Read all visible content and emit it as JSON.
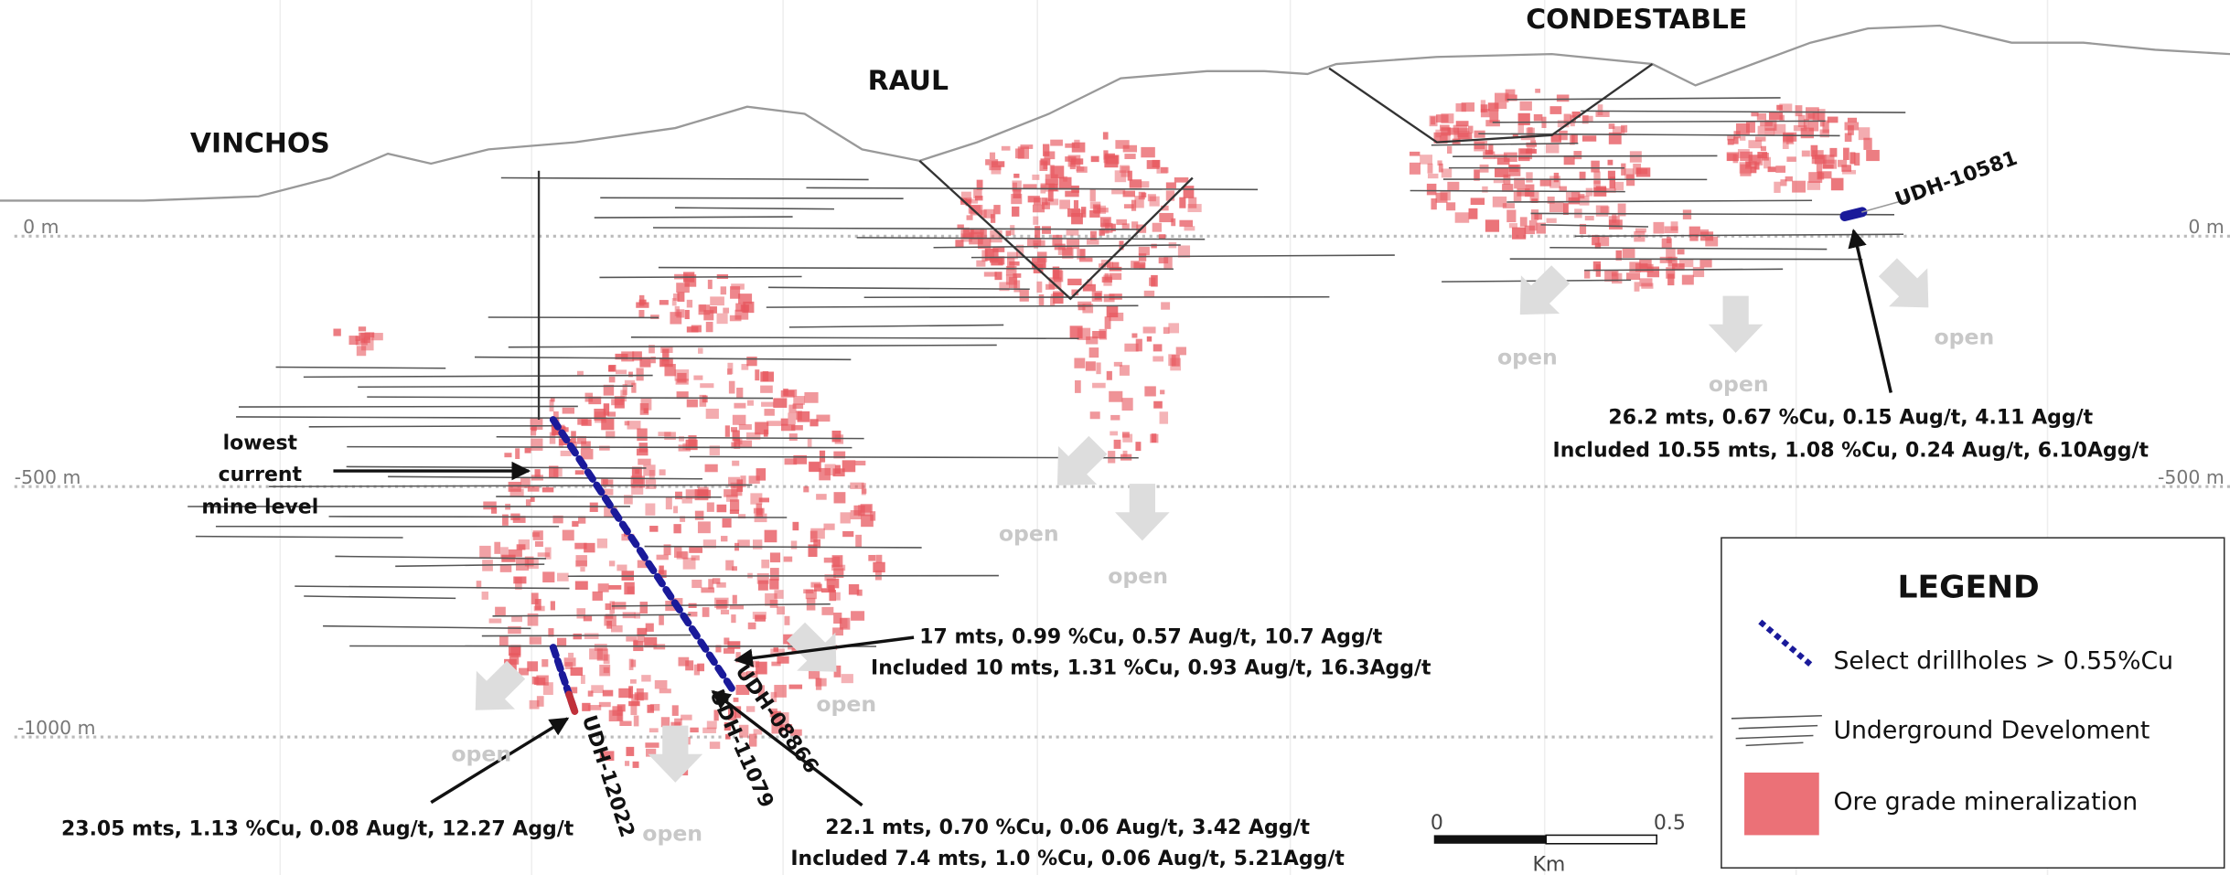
{
  "zones": [
    "VINCHOS",
    "RAUL",
    "CONDESTABLE"
  ],
  "depth_levels": {
    "left": [
      "0 m",
      "-500 m",
      "-1000 m"
    ],
    "right": [
      "0 m",
      "-500 m"
    ]
  },
  "mine_level_note": [
    "lowest",
    "current",
    "mine level"
  ],
  "open_labels": [
    "open",
    "open",
    "open",
    "open",
    "open",
    "open",
    "open",
    "open"
  ],
  "drillholes": [
    "UDH-10581",
    "UDH-08866",
    "UDH-11079",
    "UDH-12022"
  ],
  "intercepts": [
    {
      "lines": [
        "26.2 mts, 0.67 %Cu, 0.15 Aug/t, 4.11 Agg/t",
        "Included 10.55 mts, 1.08 %Cu, 0.24 Aug/t, 6.10Agg/t"
      ]
    },
    {
      "lines": [
        "17 mts, 0.99 %Cu, 0.57 Aug/t, 10.7 Agg/t",
        "Included 10 mts, 1.31 %Cu, 0.93 Aug/t, 16.3Agg/t"
      ]
    },
    {
      "lines": [
        "22.1 mts, 0.70 %Cu, 0.06 Aug/t, 3.42 Agg/t",
        "Included 7.4 mts, 1.0 %Cu, 0.06 Aug/t, 5.21Agg/t"
      ]
    },
    {
      "lines": [
        "23.05 mts, 1.13 %Cu, 0.08 Aug/t, 12.27 Agg/t"
      ]
    }
  ],
  "legend": {
    "title": "LEGEND",
    "items": [
      "Select drillholes > 0.55%Cu",
      "Underground Develoment",
      "Ore grade mineralization"
    ]
  },
  "scale": {
    "start": "0",
    "end": "0.5",
    "unit": "Km"
  }
}
